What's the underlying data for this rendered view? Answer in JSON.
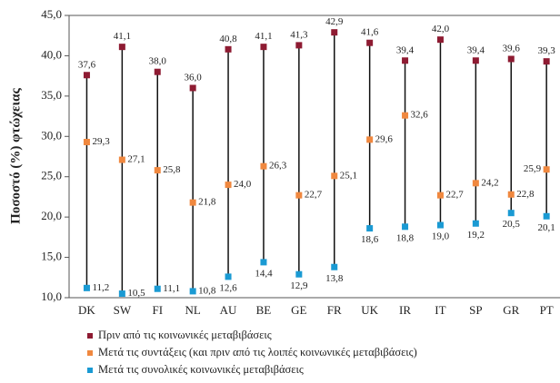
{
  "chart_data": {
    "type": "dot-range",
    "ylabel": "Ποσοστό (%) φτώχειας",
    "categories": [
      "DK",
      "SW",
      "FI",
      "NL",
      "AU",
      "BE",
      "GE",
      "FR",
      "UK",
      "IR",
      "IT",
      "SP",
      "GR",
      "PT"
    ],
    "series": [
      {
        "name": "Πριν από τις κοινωνικές μεταβιβάσεις",
        "color": "#8e1b32",
        "values": [
          37.6,
          41.1,
          38.0,
          36.0,
          40.8,
          41.1,
          41.3,
          42.9,
          41.6,
          39.4,
          42.0,
          39.4,
          39.6,
          39.3
        ],
        "value_labels": [
          "37,6",
          "41,1",
          "38,0",
          "36,0",
          "40,8",
          "41,1",
          "41,3",
          "42,9",
          "41,6",
          "39,4",
          "42,0",
          "39,4",
          "39,6",
          "39,3"
        ]
      },
      {
        "name": "Μετά τις συντάξεις (και πριν από τις λοιπές κοινωνικές μεταβιβάσεις)",
        "color": "#f0883f",
        "values": [
          29.3,
          27.1,
          25.8,
          21.8,
          24.0,
          26.3,
          22.7,
          25.1,
          29.6,
          32.6,
          22.7,
          24.2,
          22.8,
          25.9
        ],
        "value_labels": [
          "29,3",
          "27,1",
          "25,8",
          "21,8",
          "24,0",
          "26,3",
          "22,7",
          "25,1",
          "29,6",
          "32,6",
          "22,7",
          "24,2",
          "22,8",
          "25,9"
        ]
      },
      {
        "name": "Μετά τις συνολικές κοινωνικές μεταβιβάσεις",
        "color": "#1a9ad3",
        "values": [
          11.2,
          10.5,
          11.1,
          10.8,
          12.6,
          14.4,
          12.9,
          13.8,
          18.6,
          18.8,
          19.0,
          19.2,
          20.5,
          20.1
        ],
        "value_labels": [
          "11,2",
          "10,5",
          "11,1",
          "10,8",
          "12,6",
          "14,4",
          "12,9",
          "13,8",
          "18,6",
          "18,8",
          "19,0",
          "19,2",
          "20,5",
          "20,1"
        ]
      }
    ],
    "ylim": [
      10,
      45
    ],
    "yticks": [
      {
        "value": 10,
        "label": "10,0"
      },
      {
        "value": 15,
        "label": "15,0"
      },
      {
        "value": 20,
        "label": "20,0"
      },
      {
        "value": 25,
        "label": "25,0"
      },
      {
        "value": 30,
        "label": "30,0"
      },
      {
        "value": 35,
        "label": "35,0"
      },
      {
        "value": 40,
        "label": "40,0"
      },
      {
        "value": 45,
        "label": "45,0"
      }
    ],
    "grid": false
  }
}
